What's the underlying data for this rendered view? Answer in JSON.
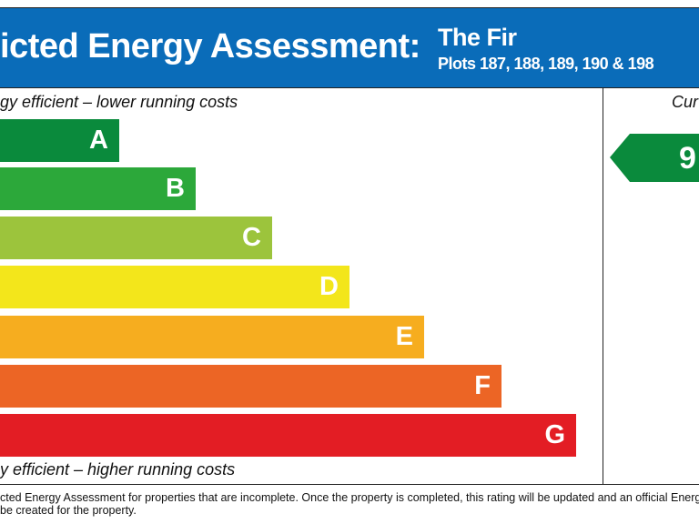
{
  "header": {
    "title": "icted Energy Assessment:",
    "name": "The Fir",
    "plots": "Plots 187, 188, 189, 190 & 198"
  },
  "scale": {
    "top_label": "gy efficient – lower running costs",
    "bottom_label": "y efficient – higher running costs",
    "bands": [
      {
        "letter": "A",
        "color": "#0a8a3c"
      },
      {
        "letter": "B",
        "color": "#2ca83a"
      },
      {
        "letter": "C",
        "color": "#9cc43c"
      },
      {
        "letter": "D",
        "color": "#f3e61b"
      },
      {
        "letter": "E",
        "color": "#f6ad1f"
      },
      {
        "letter": "F",
        "color": "#ec6525"
      },
      {
        "letter": "G",
        "color": "#e31d24"
      }
    ]
  },
  "current": {
    "label": "Cur",
    "rating": "9",
    "color": "#0a8a3c"
  },
  "footer": [
    "cted Energy Assessment for properties that are incomplete. Once the property is completed, this rating will be updated and an official Energy",
    "be created for the property."
  ]
}
